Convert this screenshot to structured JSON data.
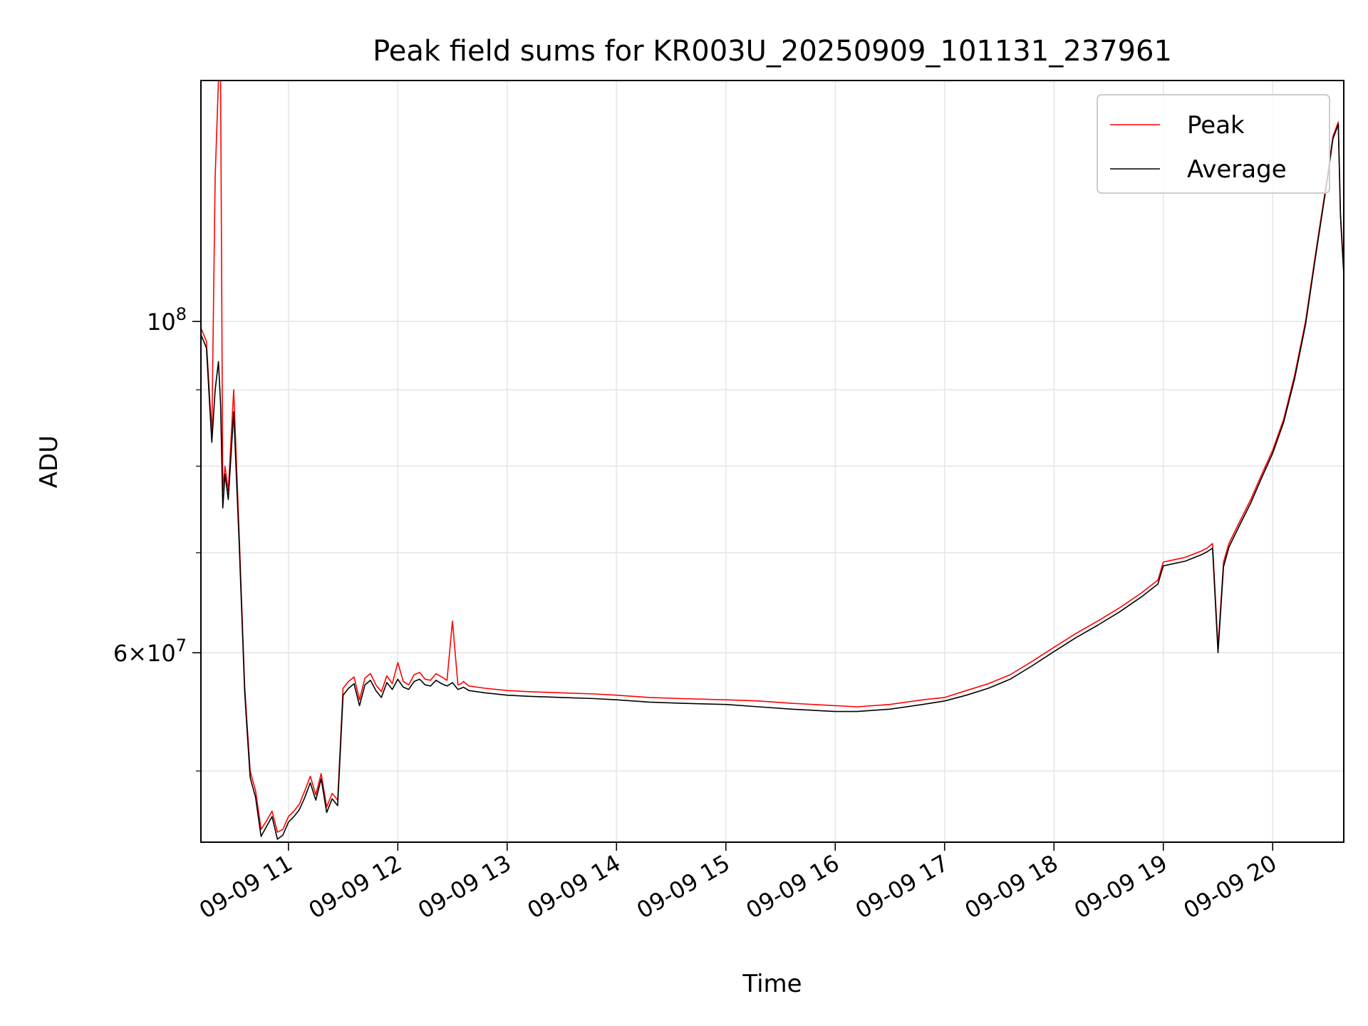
{
  "chart_data": {
    "type": "line",
    "title": "Peak field sums for KR003U_20250909_101131_237961",
    "xlabel": "Time",
    "ylabel": "ADU",
    "x_unit": "hour of 2025-09-09",
    "y_scale": "log",
    "xlim": [
      10.2,
      20.65
    ],
    "ylim": [
      44800000,
      145000000
    ],
    "x_ticks": [
      11,
      12,
      13,
      14,
      15,
      16,
      17,
      18,
      19,
      20
    ],
    "x_tick_labels": [
      "09-09 11",
      "09-09 12",
      "09-09 13",
      "09-09 14",
      "09-09 15",
      "09-09 16",
      "09-09 17",
      "09-09 18",
      "09-09 19",
      "09-09 20"
    ],
    "y_major_ticks": [
      {
        "value": 100000000,
        "mantissa": "",
        "base": "10",
        "exp": "8"
      },
      {
        "value": 60000000,
        "mantissa": "6",
        "base": "10",
        "exp": "7"
      }
    ],
    "y_minor_ticks": [
      50000000,
      70000000,
      80000000,
      90000000
    ],
    "grid": true,
    "legend_position": "top-right",
    "series": [
      {
        "name": "Peak",
        "color": "#ff0000",
        "x": [
          10.2,
          10.25,
          10.3,
          10.33,
          10.36,
          10.38,
          10.4,
          10.42,
          10.45,
          10.5,
          10.55,
          10.6,
          10.62,
          10.65,
          10.7,
          10.75,
          10.8,
          10.85,
          10.9,
          10.95,
          11.0,
          11.05,
          11.1,
          11.15,
          11.2,
          11.25,
          11.3,
          11.35,
          11.4,
          11.45,
          11.5,
          11.55,
          11.6,
          11.65,
          11.7,
          11.75,
          11.8,
          11.85,
          11.9,
          11.95,
          12.0,
          12.05,
          12.1,
          12.15,
          12.2,
          12.25,
          12.3,
          12.35,
          12.4,
          12.45,
          12.5,
          12.55,
          12.58,
          12.6,
          12.65,
          12.8,
          13.0,
          13.2,
          13.5,
          13.8,
          14.0,
          14.3,
          14.6,
          15.0,
          15.3,
          15.6,
          16.0,
          16.2,
          16.5,
          16.8,
          17.0,
          17.2,
          17.4,
          17.6,
          17.8,
          18.0,
          18.2,
          18.4,
          18.6,
          18.8,
          18.95,
          19.0,
          19.2,
          19.35,
          19.4,
          19.45,
          19.5,
          19.55,
          19.6,
          19.7,
          19.8,
          19.9,
          20.0,
          20.1,
          20.2,
          20.3,
          20.4,
          20.5,
          20.55,
          20.6,
          20.62,
          20.65
        ],
        "values": [
          99000000,
          97000000,
          84000000,
          125000000,
          145000000,
          145000000,
          77000000,
          80000000,
          77000000,
          90000000,
          72000000,
          57000000,
          54000000,
          50000000,
          48500000,
          45700000,
          46300000,
          47000000,
          45500000,
          45700000,
          46600000,
          47000000,
          47500000,
          48500000,
          49600000,
          48200000,
          49800000,
          47300000,
          48300000,
          47800000,
          56800000,
          57400000,
          57800000,
          55800000,
          57700000,
          58100000,
          57100000,
          56500000,
          57900000,
          57200000,
          59100000,
          57400000,
          57100000,
          58000000,
          58200000,
          57600000,
          57500000,
          58100000,
          57800000,
          57500000,
          63000000,
          57100000,
          57200000,
          57400000,
          57000000,
          56800000,
          56600000,
          56500000,
          56400000,
          56300000,
          56200000,
          56000000,
          55900000,
          55800000,
          55700000,
          55500000,
          55300000,
          55200000,
          55400000,
          55800000,
          56000000,
          56600000,
          57200000,
          58000000,
          59200000,
          60500000,
          61800000,
          63000000,
          64300000,
          65800000,
          67100000,
          69000000,
          69500000,
          70200000,
          70500000,
          71000000,
          60500000,
          69000000,
          71000000,
          73500000,
          76000000,
          79000000,
          82000000,
          86000000,
          92000000,
          100000000,
          112000000,
          125000000,
          133000000,
          136000000,
          118000000,
          108000000
        ]
      },
      {
        "name": "Average",
        "color": "#000000",
        "x": [
          10.2,
          10.25,
          10.3,
          10.33,
          10.36,
          10.38,
          10.4,
          10.42,
          10.45,
          10.5,
          10.55,
          10.6,
          10.62,
          10.65,
          10.7,
          10.75,
          10.8,
          10.85,
          10.9,
          10.95,
          11.0,
          11.05,
          11.1,
          11.15,
          11.2,
          11.25,
          11.3,
          11.35,
          11.4,
          11.45,
          11.5,
          11.55,
          11.6,
          11.65,
          11.7,
          11.75,
          11.8,
          11.85,
          11.9,
          11.95,
          12.0,
          12.05,
          12.1,
          12.15,
          12.2,
          12.25,
          12.3,
          12.35,
          12.4,
          12.45,
          12.5,
          12.55,
          12.58,
          12.6,
          12.65,
          12.8,
          13.0,
          13.2,
          13.5,
          13.8,
          14.0,
          14.3,
          14.6,
          15.0,
          15.3,
          15.6,
          16.0,
          16.2,
          16.5,
          16.8,
          17.0,
          17.2,
          17.4,
          17.6,
          17.8,
          18.0,
          18.2,
          18.4,
          18.6,
          18.8,
          18.95,
          19.0,
          19.2,
          19.35,
          19.4,
          19.45,
          19.5,
          19.55,
          19.6,
          19.7,
          19.8,
          19.9,
          20.0,
          20.1,
          20.2,
          20.3,
          20.4,
          20.5,
          20.55,
          20.6,
          20.62,
          20.65
        ],
        "values": [
          98000000,
          96000000,
          83000000,
          90000000,
          94000000,
          88000000,
          75000000,
          79000000,
          76000000,
          87000000,
          71000000,
          56500000,
          53500000,
          49500000,
          48000000,
          45200000,
          45900000,
          46600000,
          45000000,
          45300000,
          46200000,
          46600000,
          47100000,
          48000000,
          49100000,
          47800000,
          49400000,
          46900000,
          47900000,
          47400000,
          56200000,
          56800000,
          57200000,
          55300000,
          57100000,
          57500000,
          56600000,
          56000000,
          57300000,
          56700000,
          57600000,
          56900000,
          56700000,
          57400000,
          57600000,
          57100000,
          57000000,
          57500000,
          57200000,
          57000000,
          57300000,
          56700000,
          56800000,
          56900000,
          56600000,
          56400000,
          56200000,
          56100000,
          56000000,
          55900000,
          55800000,
          55600000,
          55500000,
          55400000,
          55200000,
          55000000,
          54800000,
          54800000,
          55000000,
          55400000,
          55700000,
          56200000,
          56800000,
          57600000,
          58800000,
          60100000,
          61400000,
          62600000,
          63900000,
          65400000,
          66700000,
          68600000,
          69100000,
          69800000,
          70100000,
          70500000,
          60000000,
          68500000,
          70600000,
          73100000,
          75600000,
          78600000,
          81600000,
          85600000,
          91500000,
          99500000,
          111500000,
          124500000,
          132500000,
          135500000,
          117500000,
          107500000
        ]
      }
    ]
  }
}
